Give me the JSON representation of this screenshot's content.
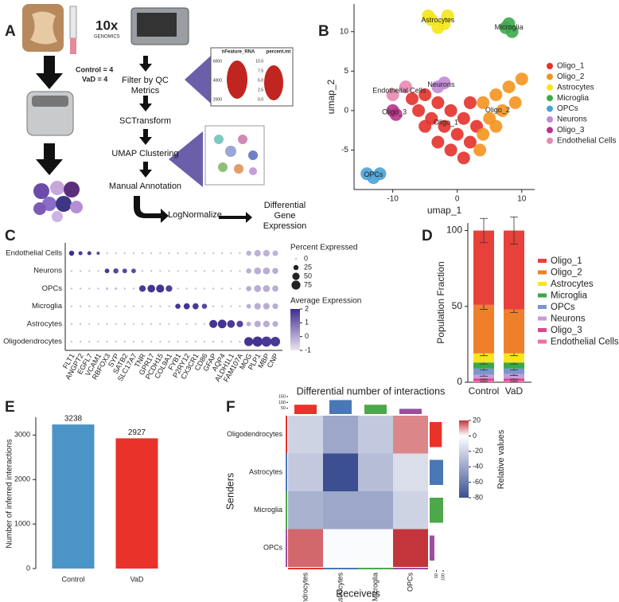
{
  "diagram": {
    "panel": "A",
    "logo": "10x",
    "logo_sub": "GENOMICS",
    "groups": [
      "Control = 4",
      "VaD = 4"
    ],
    "steps": [
      "Filter by QC Metrics",
      "SCTransform",
      "UMAP Clustering",
      "Manual Annotation"
    ],
    "branch": [
      "LogNormalize",
      "Differential Gene Expression"
    ],
    "qc_plots": [
      {
        "title": "nFeature_RNA",
        "ticks": [
          "6000",
          "4000",
          "2000"
        ]
      },
      {
        "title": "percent.mt",
        "ticks": [
          "10.0",
          "7.5",
          "5.0",
          "2.5",
          "0.0"
        ]
      }
    ]
  },
  "chart_data": [
    {
      "type": "scatter",
      "panel": "B",
      "xlabel": "umap_1",
      "ylabel": "umap_2",
      "xlim": [
        -16,
        12
      ],
      "ylim": [
        -10,
        13.5
      ],
      "xticks": [
        -10,
        0,
        10
      ],
      "yticks": [
        -5,
        0,
        5,
        10
      ],
      "series": [
        {
          "name": "Oligo_1",
          "color": "#e3312b",
          "x": [
            -7,
            -5,
            -3,
            -1,
            1,
            -2,
            0,
            -4,
            2,
            -1,
            1,
            -6,
            3,
            2,
            -3,
            -5
          ],
          "y": [
            1.5,
            2,
            1,
            0,
            -1,
            -2,
            -3,
            -1,
            1,
            -5,
            -6,
            0,
            -2,
            -4,
            -4,
            -2
          ]
        },
        {
          "name": "Oligo_2",
          "color": "#f5931e",
          "x": [
            4,
            6,
            8,
            10,
            5,
            7,
            9,
            4,
            6,
            3.5
          ],
          "y": [
            1,
            2,
            3,
            4,
            -1,
            0,
            1,
            -3,
            -2,
            -5
          ]
        },
        {
          "name": "Astrocytes",
          "color": "#f4e51b",
          "x": [
            -4,
            -2,
            -3,
            -4.5,
            -1.5
          ],
          "y": [
            11.5,
            11,
            10.5,
            12,
            12
          ]
        },
        {
          "name": "Microglia",
          "color": "#3da94a",
          "x": [
            7.5,
            8,
            8.5
          ],
          "y": [
            10.5,
            11,
            10
          ]
        },
        {
          "name": "OPCs",
          "color": "#4aa2d8",
          "x": [
            -14,
            -13,
            -12
          ],
          "y": [
            -8,
            -8.5,
            -8
          ]
        },
        {
          "name": "Neurons",
          "color": "#c08ad6",
          "x": [
            -3,
            -2
          ],
          "y": [
            3,
            3.5
          ]
        },
        {
          "name": "Oligo_3",
          "color": "#b8348a",
          "x": [
            -10,
            -9.5
          ],
          "y": [
            0,
            -0.5
          ]
        },
        {
          "name": "Endothelial Cells",
          "color": "#e58ab0",
          "x": [
            -8,
            -10
          ],
          "y": [
            3,
            2
          ]
        }
      ]
    },
    {
      "type": "dot",
      "panel": "C",
      "genes": [
        "FLT1",
        "ANGPT2",
        "EGFL7",
        "VCAM1",
        "RBFOX3",
        "SYP",
        "SATB2",
        "SLC17A7",
        "TNR",
        "GPR17",
        "PCDH15",
        "COL9A1",
        "FYB1",
        "P2RY12",
        "CX3CR1",
        "CD86",
        "GFAP",
        "AQP4",
        "ALDH1L1",
        "FAM107A",
        "MOG",
        "PLP1",
        "MBP",
        "CNP"
      ],
      "rows": [
        "Endothelial Cells",
        "Neurons",
        "OPCs",
        "Microglia",
        "Astrocytes",
        "Oligodendrocytes"
      ],
      "pct": [
        [
          25,
          15,
          15,
          10,
          3,
          3,
          3,
          3,
          3,
          3,
          3,
          3,
          3,
          3,
          3,
          3,
          3,
          3,
          3,
          3,
          25,
          40,
          40,
          30
        ],
        [
          3,
          3,
          3,
          3,
          20,
          25,
          20,
          20,
          3,
          3,
          3,
          3,
          3,
          3,
          3,
          3,
          3,
          3,
          3,
          3,
          25,
          45,
          45,
          35
        ],
        [
          3,
          3,
          3,
          3,
          5,
          5,
          3,
          3,
          40,
          55,
          60,
          40,
          3,
          3,
          3,
          3,
          3,
          3,
          3,
          3,
          25,
          45,
          45,
          35
        ],
        [
          3,
          3,
          3,
          3,
          3,
          3,
          3,
          3,
          3,
          3,
          3,
          3,
          25,
          35,
          35,
          25,
          3,
          3,
          3,
          3,
          20,
          40,
          40,
          30
        ],
        [
          3,
          3,
          3,
          3,
          3,
          3,
          3,
          3,
          3,
          3,
          3,
          3,
          3,
          3,
          3,
          3,
          60,
          70,
          55,
          40,
          20,
          40,
          40,
          30
        ],
        [
          3,
          3,
          3,
          3,
          3,
          3,
          3,
          3,
          3,
          3,
          3,
          3,
          3,
          3,
          3,
          3,
          3,
          3,
          3,
          3,
          75,
          95,
          95,
          85
        ]
      ],
      "avg": [
        [
          2,
          1.8,
          1.8,
          1.5,
          -0.3,
          -0.3,
          -0.3,
          -0.3,
          -0.3,
          -0.3,
          -0.3,
          -0.3,
          -0.3,
          -0.3,
          -0.3,
          -0.3,
          -0.3,
          -0.3,
          -0.3,
          -0.3,
          -0.2,
          -0.2,
          -0.2,
          -0.2
        ],
        [
          -0.3,
          -0.3,
          -0.3,
          -0.3,
          1.8,
          1.6,
          1.6,
          1.5,
          -0.3,
          -0.3,
          -0.3,
          -0.3,
          -0.3,
          -0.3,
          -0.3,
          -0.3,
          -0.3,
          -0.3,
          -0.3,
          -0.3,
          -0.1,
          -0.1,
          -0.1,
          -0.1
        ],
        [
          -0.3,
          -0.3,
          -0.3,
          -0.3,
          -0.2,
          -0.2,
          -0.3,
          -0.3,
          1.8,
          1.9,
          1.9,
          1.7,
          -0.3,
          -0.3,
          -0.3,
          -0.3,
          -0.3,
          -0.3,
          -0.3,
          -0.3,
          -0.1,
          -0.1,
          -0.1,
          -0.1
        ],
        [
          -0.3,
          -0.3,
          -0.3,
          -0.3,
          -0.3,
          -0.3,
          -0.3,
          -0.3,
          -0.3,
          -0.3,
          -0.3,
          -0.3,
          1.9,
          1.9,
          1.8,
          1.6,
          -0.3,
          -0.3,
          -0.3,
          -0.3,
          -0.1,
          -0.1,
          -0.1,
          -0.1
        ],
        [
          -0.3,
          -0.3,
          -0.3,
          -0.3,
          -0.3,
          -0.3,
          -0.3,
          -0.3,
          -0.3,
          -0.3,
          -0.3,
          -0.3,
          -0.3,
          -0.3,
          -0.3,
          -0.3,
          1.9,
          1.9,
          1.8,
          1.6,
          -0.1,
          -0.1,
          -0.1,
          -0.1
        ],
        [
          -0.3,
          -0.3,
          -0.3,
          -0.3,
          -0.3,
          -0.3,
          -0.3,
          -0.3,
          -0.3,
          -0.3,
          -0.3,
          -0.3,
          -0.3,
          -0.3,
          -0.3,
          -0.3,
          -0.3,
          -0.3,
          -0.3,
          -0.3,
          1.9,
          1.9,
          1.8,
          1.8
        ]
      ],
      "size_title": "Percent Expressed",
      "size_ticks": [
        0,
        25,
        50,
        75
      ],
      "color_title": "Average Expression",
      "clim": [
        -1,
        2
      ],
      "color_ticks": [
        2,
        1,
        0,
        -1
      ],
      "color_low": "#ece4f1",
      "color_high": "#3f2d8f"
    },
    {
      "type": "stacked-bar",
      "panel": "D",
      "ylabel": "Population Fraction",
      "categories": [
        "Control",
        "VaD"
      ],
      "ylim": [
        0,
        105
      ],
      "yticks": [
        0,
        50,
        100
      ],
      "series": [
        {
          "name": "Oligo_1",
          "color": "#e8413b",
          "values": [
            49,
            52
          ],
          "errors": [
            8,
            9
          ]
        },
        {
          "name": "Oligo_2",
          "color": "#f07f2b",
          "values": [
            32,
            29
          ],
          "errors": [
            3,
            2
          ]
        },
        {
          "name": "Astrocytes",
          "color": "#f7e51d",
          "values": [
            6,
            6
          ],
          "errors": [
            1.5,
            1.5
          ]
        },
        {
          "name": "Microglia",
          "color": "#3aa848",
          "values": [
            4,
            4
          ],
          "errors": [
            1,
            1
          ]
        },
        {
          "name": "OPCs",
          "color": "#7a96cf",
          "values": [
            4,
            3.5
          ],
          "errors": [
            1,
            1
          ]
        },
        {
          "name": "Neurons",
          "color": "#c89ad8",
          "values": [
            2.5,
            3
          ],
          "errors": [
            1,
            1
          ]
        },
        {
          "name": "Oligo_3",
          "color": "#d8488e",
          "values": [
            1.5,
            1.5
          ],
          "errors": [
            0.5,
            0.5
          ]
        },
        {
          "name": "Endothelial Cells",
          "color": "#ef6fa0",
          "values": [
            1,
            1
          ],
          "errors": [
            0.5,
            0.5
          ]
        }
      ]
    },
    {
      "type": "bar",
      "panel": "E",
      "ylabel": "Number of inferred interactions",
      "categories": [
        "Control",
        "VaD"
      ],
      "values": [
        3238,
        2927
      ],
      "colors": [
        "#4a94c7",
        "#e8322a"
      ],
      "ylim": [
        0,
        3400
      ],
      "yticks": [
        0,
        1000,
        2000,
        3000
      ]
    },
    {
      "type": "heatmap",
      "panel": "F",
      "title": "Differential number of interactions",
      "xlabel": "Receivers",
      "ylabel": "Senders",
      "rows": [
        "Oligodendrocytes",
        "Astrocytes",
        "Microglia",
        "OPCs"
      ],
      "columns": [
        "Oligodendrocytes",
        "Astrocytes",
        "Microglia",
        "OPCs"
      ],
      "values": [
        [
          -20,
          -40,
          -25,
          12
        ],
        [
          -25,
          -80,
          -30,
          -15
        ],
        [
          -35,
          -40,
          -40,
          -20
        ],
        [
          15,
          -2,
          -2,
          20
        ]
      ],
      "group_colors": [
        "#e8322a",
        "#4a78b5",
        "#4ca84a",
        "#9b4ea0"
      ],
      "colorbar_title": "Relative values",
      "clim": [
        -80,
        20
      ],
      "cticks": [
        20,
        0,
        -20,
        -40,
        -60,
        -80
      ],
      "colors": [
        "#3b4f92",
        "#ffffff",
        "#c3353a"
      ],
      "top_bars": {
        "values": [
          80,
          120,
          80,
          45
        ],
        "ticks": [
          150,
          100,
          50
        ]
      },
      "side_bars": {
        "values": [
          90,
          100,
          100,
          35
        ],
        "ticks": [
          50,
          100
        ]
      }
    }
  ]
}
